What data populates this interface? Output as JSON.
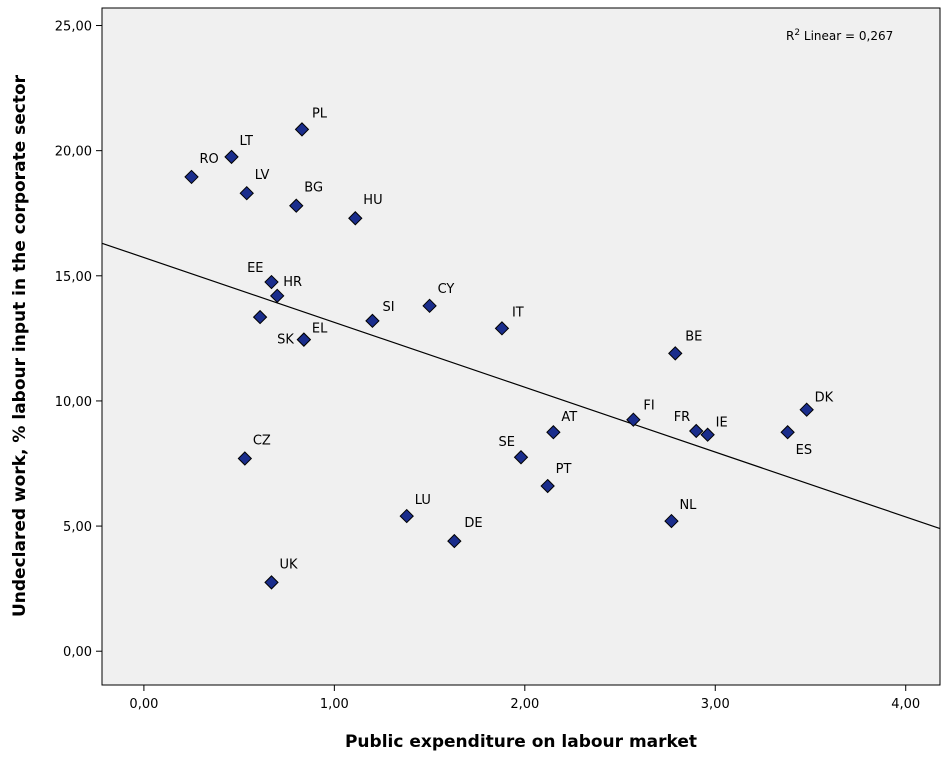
{
  "chart_data": {
    "type": "scatter",
    "xlabel": "Public expenditure on labour market",
    "ylabel": "Undeclared work, % labour input in the corporate sector",
    "xlim": [
      -0.22,
      4.18
    ],
    "ylim": [
      -1.35,
      25.7
    ],
    "xticks": [
      "0,00",
      "1,00",
      "2,00",
      "3,00",
      "4,00"
    ],
    "xtick_values": [
      0,
      1,
      2,
      3,
      4
    ],
    "yticks": [
      "0,00",
      "5,00",
      "10,00",
      "15,00",
      "20,00",
      "25,00"
    ],
    "ytick_values": [
      0,
      5,
      10,
      15,
      20,
      25
    ],
    "fit_line": {
      "label_prefix": "R",
      "label_sup": "2",
      "label_rest": " Linear = 0,267",
      "x": [
        -0.22,
        4.18
      ],
      "y": [
        16.3,
        4.9
      ]
    },
    "marker_color": "#1a2d8c",
    "grid": false,
    "points": [
      {
        "label": "RO",
        "x": 0.25,
        "y": 18.95,
        "pos": "ro"
      },
      {
        "label": "LT",
        "x": 0.46,
        "y": 19.75,
        "pos": "lt"
      },
      {
        "label": "PL",
        "x": 0.83,
        "y": 20.85,
        "pos": "pl"
      },
      {
        "label": "LV",
        "x": 0.54,
        "y": 18.3,
        "pos": "lv"
      },
      {
        "label": "BG",
        "x": 0.8,
        "y": 17.8,
        "pos": "bg"
      },
      {
        "label": "HU",
        "x": 1.11,
        "y": 17.3,
        "pos": "hu"
      },
      {
        "label": "EE",
        "x": 0.67,
        "y": 14.75,
        "pos": "ee"
      },
      {
        "label": "HR",
        "x": 0.7,
        "y": 14.2,
        "pos": "hr"
      },
      {
        "label": "",
        "x": 0.61,
        "y": 13.35,
        "pos": "none"
      },
      {
        "label": "SK",
        "x": 0.84,
        "y": 12.45,
        "pos": "sk"
      },
      {
        "label": "EL",
        "x": 0.84,
        "y": 12.45,
        "pos": "el"
      },
      {
        "label": "SI",
        "x": 1.2,
        "y": 13.2,
        "pos": "si"
      },
      {
        "label": "CY",
        "x": 1.5,
        "y": 13.8,
        "pos": "cy"
      },
      {
        "label": "IT",
        "x": 1.88,
        "y": 12.9,
        "pos": "it"
      },
      {
        "label": "BE",
        "x": 2.79,
        "y": 11.9,
        "pos": "be"
      },
      {
        "label": "FI",
        "x": 2.57,
        "y": 9.25,
        "pos": "fi"
      },
      {
        "label": "FR",
        "x": 2.9,
        "y": 8.8,
        "pos": "fr"
      },
      {
        "label": "IE",
        "x": 2.96,
        "y": 8.65,
        "pos": "ie"
      },
      {
        "label": "DK",
        "x": 3.48,
        "y": 9.65,
        "pos": "dk"
      },
      {
        "label": "ES",
        "x": 3.38,
        "y": 8.75,
        "pos": "es"
      },
      {
        "label": "AT",
        "x": 2.15,
        "y": 8.75,
        "pos": "at"
      },
      {
        "label": "SE",
        "x": 1.98,
        "y": 7.75,
        "pos": "se"
      },
      {
        "label": "PT",
        "x": 2.12,
        "y": 6.6,
        "pos": "pt"
      },
      {
        "label": "NL",
        "x": 2.77,
        "y": 5.2,
        "pos": "nl"
      },
      {
        "label": "CZ",
        "x": 0.53,
        "y": 7.7,
        "pos": "cz"
      },
      {
        "label": "LU",
        "x": 1.38,
        "y": 5.4,
        "pos": "lu"
      },
      {
        "label": "DE",
        "x": 1.63,
        "y": 4.4,
        "pos": "de"
      },
      {
        "label": "UK",
        "x": 0.67,
        "y": 2.75,
        "pos": "uk"
      }
    ]
  }
}
